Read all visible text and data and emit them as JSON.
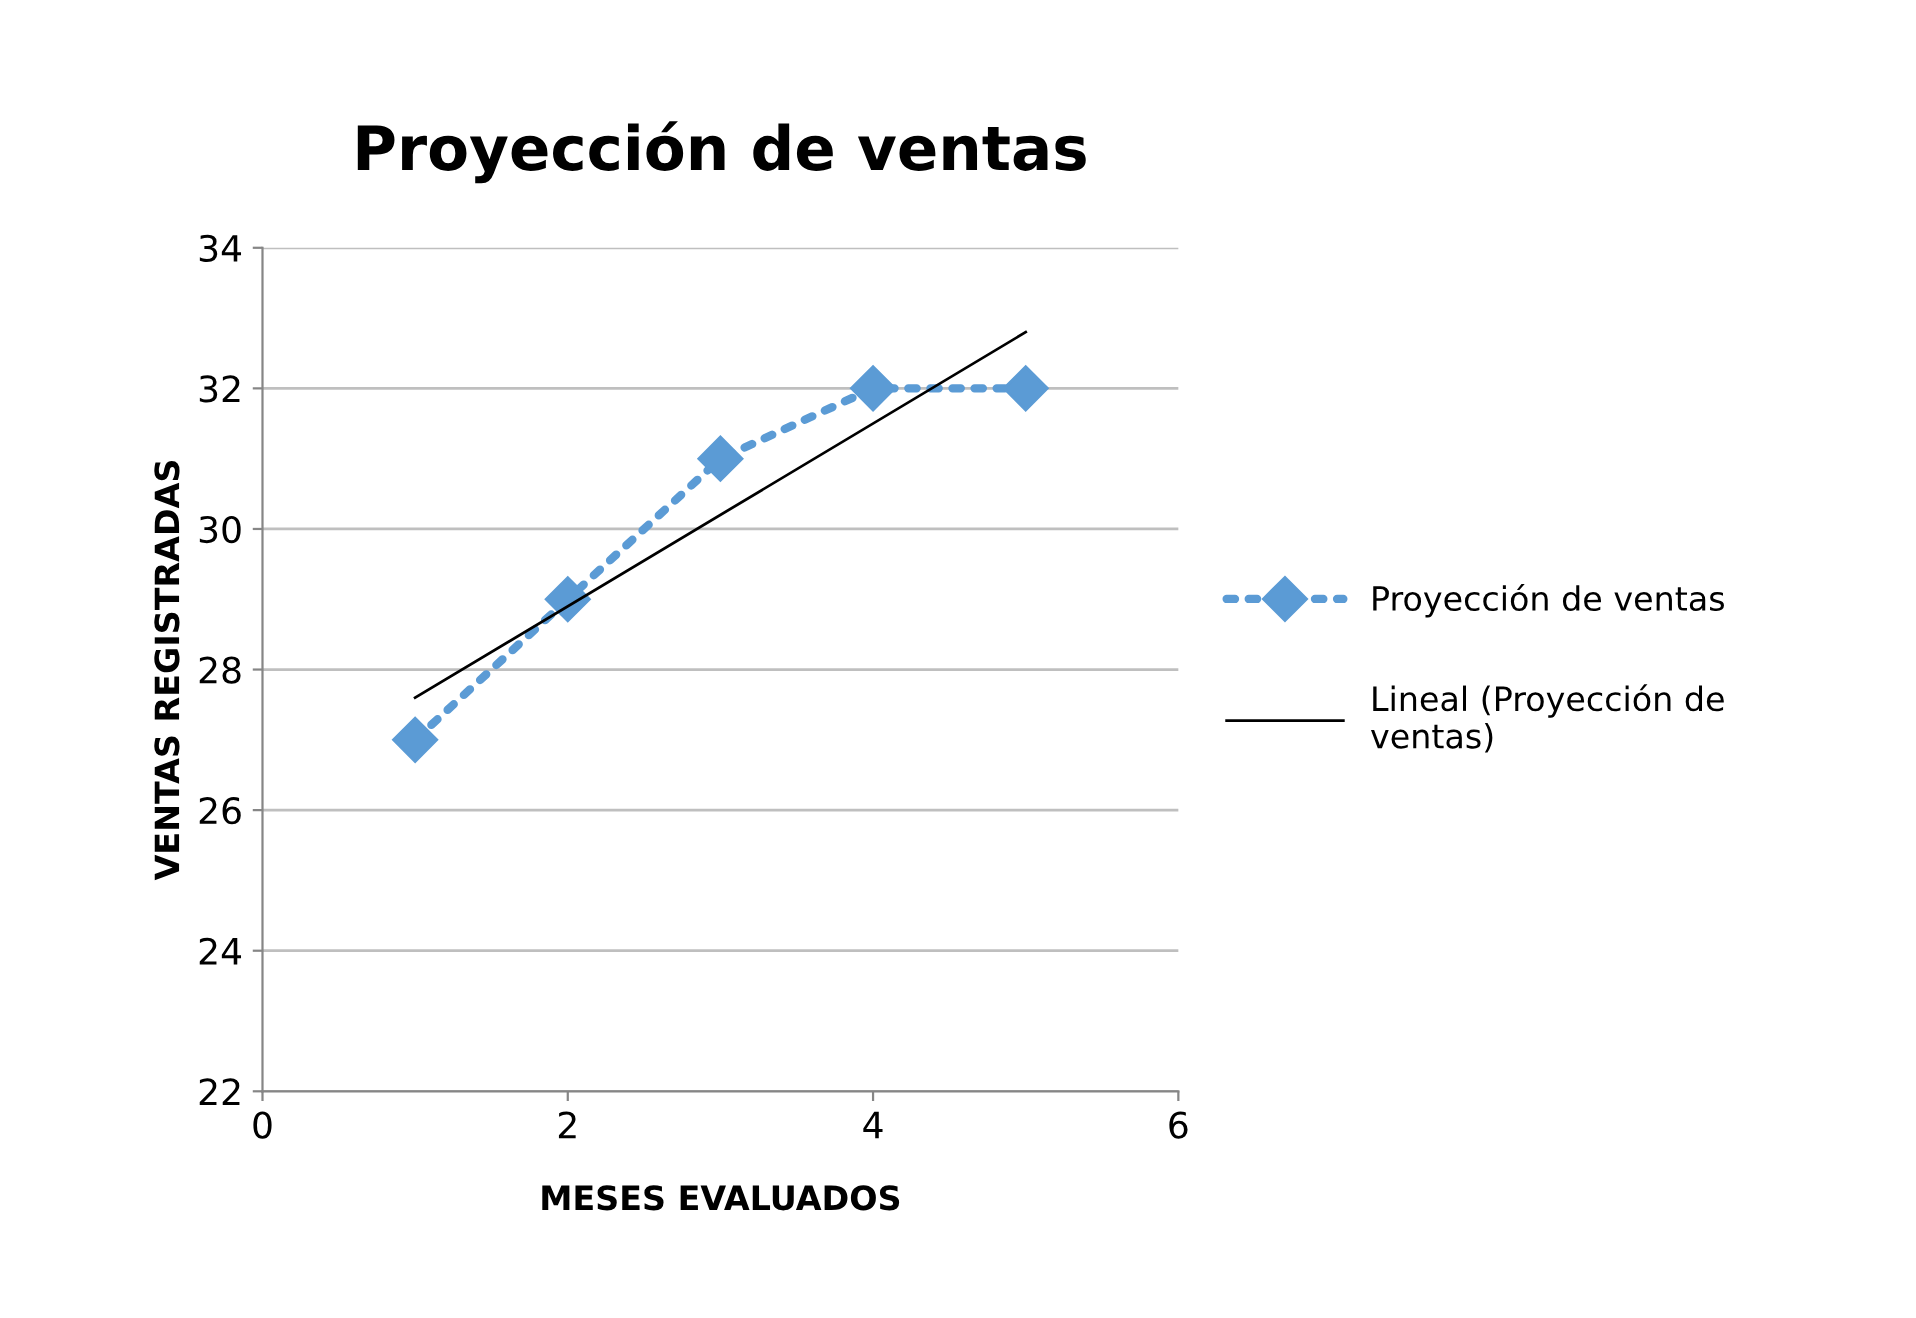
{
  "chart_data": {
    "type": "line",
    "title": "Proyección de ventas",
    "xlabel": "MESES EVALUADOS",
    "ylabel": "VENTAS REGISTRADAS",
    "x": [
      1,
      2,
      3,
      4,
      5
    ],
    "series": [
      {
        "name": "Proyección de ventas",
        "color": "#5b9bd5",
        "values": [
          27,
          29,
          31,
          32,
          32
        ],
        "marker": "diamond",
        "line_style": "dotted"
      },
      {
        "name": "Lineal (Proyección de ventas)",
        "color": "#000000",
        "type": "line",
        "x": [
          1,
          5
        ],
        "values": [
          27.6,
          32.8
        ],
        "marker": "none",
        "line_style": "solid"
      }
    ],
    "xlim": [
      0,
      6
    ],
    "xticks": [
      0,
      2,
      4,
      6
    ],
    "ylim": [
      22,
      34
    ],
    "yticks": [
      22,
      24,
      26,
      28,
      30,
      32,
      34
    ],
    "grid": "y",
    "legend": "right"
  }
}
